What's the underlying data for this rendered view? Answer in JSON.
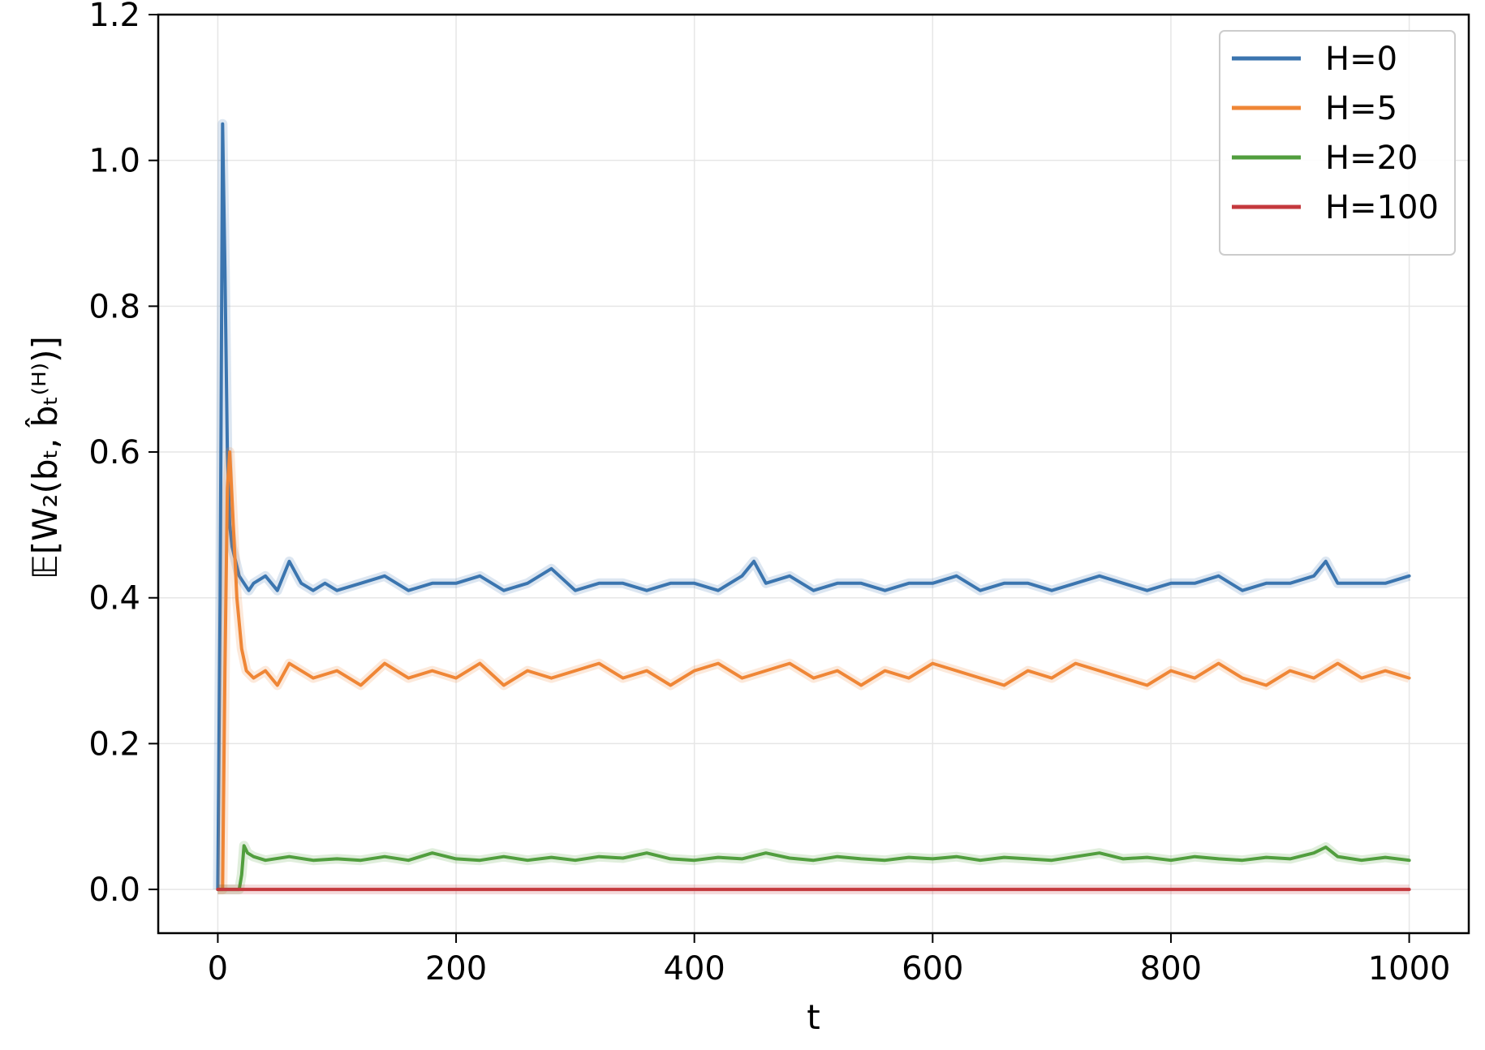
{
  "chart_data": {
    "type": "line",
    "xlabel": "t",
    "ylabel": "𝔼[W₂(bₜ, b̂ₜ⁽ᴴ⁾)]",
    "xlim": [
      -50,
      1050
    ],
    "ylim": [
      -0.06,
      1.2
    ],
    "xticks": [
      0,
      200,
      400,
      600,
      800,
      1000
    ],
    "yticks": [
      0.0,
      0.2,
      0.4,
      0.6,
      0.8,
      1.0,
      1.2
    ],
    "xtick_labels": [
      "0",
      "200",
      "400",
      "600",
      "800",
      "1000"
    ],
    "ytick_labels": [
      "0.0",
      "0.2",
      "0.4",
      "0.6",
      "0.8",
      "1.0",
      "1.2"
    ],
    "grid": true,
    "legend_position": "top-right",
    "series": [
      {
        "name": "H=0",
        "color": "#3b75af",
        "x": [
          0,
          2,
          4,
          6,
          8,
          10,
          12,
          15,
          18,
          22,
          26,
          30,
          40,
          50,
          60,
          70,
          80,
          90,
          100,
          120,
          140,
          160,
          180,
          200,
          220,
          240,
          260,
          280,
          300,
          320,
          340,
          360,
          380,
          400,
          420,
          440,
          450,
          460,
          480,
          500,
          520,
          540,
          560,
          580,
          600,
          620,
          640,
          660,
          680,
          700,
          720,
          740,
          760,
          780,
          800,
          820,
          840,
          860,
          880,
          900,
          920,
          930,
          940,
          960,
          980,
          1000
        ],
        "y": [
          0.0,
          0.4,
          1.05,
          0.85,
          0.6,
          0.5,
          0.47,
          0.45,
          0.43,
          0.42,
          0.41,
          0.42,
          0.43,
          0.41,
          0.45,
          0.42,
          0.41,
          0.42,
          0.41,
          0.42,
          0.43,
          0.41,
          0.42,
          0.42,
          0.43,
          0.41,
          0.42,
          0.44,
          0.41,
          0.42,
          0.42,
          0.41,
          0.42,
          0.42,
          0.41,
          0.43,
          0.45,
          0.42,
          0.43,
          0.41,
          0.42,
          0.42,
          0.41,
          0.42,
          0.42,
          0.43,
          0.41,
          0.42,
          0.42,
          0.41,
          0.42,
          0.43,
          0.42,
          0.41,
          0.42,
          0.42,
          0.43,
          0.41,
          0.42,
          0.42,
          0.43,
          0.45,
          0.42,
          0.42,
          0.42,
          0.43
        ]
      },
      {
        "name": "H=5",
        "color": "#ef8636",
        "x": [
          0,
          4,
          6,
          8,
          10,
          13,
          16,
          20,
          24,
          30,
          40,
          50,
          60,
          80,
          100,
          120,
          140,
          160,
          180,
          200,
          220,
          240,
          260,
          280,
          300,
          320,
          340,
          360,
          380,
          400,
          420,
          440,
          460,
          480,
          500,
          520,
          540,
          560,
          580,
          600,
          620,
          640,
          660,
          680,
          700,
          720,
          740,
          760,
          780,
          800,
          820,
          840,
          860,
          880,
          900,
          920,
          940,
          960,
          980,
          1000
        ],
        "y": [
          0.0,
          0.0,
          0.3,
          0.55,
          0.6,
          0.5,
          0.4,
          0.33,
          0.3,
          0.29,
          0.3,
          0.28,
          0.31,
          0.29,
          0.3,
          0.28,
          0.31,
          0.29,
          0.3,
          0.29,
          0.31,
          0.28,
          0.3,
          0.29,
          0.3,
          0.31,
          0.29,
          0.3,
          0.28,
          0.3,
          0.31,
          0.29,
          0.3,
          0.31,
          0.29,
          0.3,
          0.28,
          0.3,
          0.29,
          0.31,
          0.3,
          0.29,
          0.28,
          0.3,
          0.29,
          0.31,
          0.3,
          0.29,
          0.28,
          0.3,
          0.29,
          0.31,
          0.29,
          0.28,
          0.3,
          0.29,
          0.31,
          0.29,
          0.3,
          0.29
        ]
      },
      {
        "name": "H=20",
        "color": "#519e3e",
        "x": [
          0,
          18,
          20,
          22,
          25,
          30,
          40,
          60,
          80,
          100,
          120,
          140,
          160,
          180,
          200,
          220,
          240,
          260,
          280,
          300,
          320,
          340,
          360,
          380,
          400,
          420,
          440,
          460,
          480,
          500,
          520,
          540,
          560,
          580,
          600,
          620,
          640,
          660,
          680,
          700,
          720,
          740,
          760,
          780,
          800,
          820,
          840,
          860,
          880,
          900,
          920,
          930,
          940,
          960,
          980,
          1000
        ],
        "y": [
          0.0,
          0.0,
          0.02,
          0.06,
          0.05,
          0.045,
          0.04,
          0.045,
          0.04,
          0.042,
          0.04,
          0.045,
          0.04,
          0.05,
          0.042,
          0.04,
          0.045,
          0.04,
          0.044,
          0.04,
          0.045,
          0.043,
          0.05,
          0.042,
          0.04,
          0.044,
          0.042,
          0.05,
          0.043,
          0.04,
          0.045,
          0.042,
          0.04,
          0.044,
          0.042,
          0.045,
          0.04,
          0.044,
          0.042,
          0.04,
          0.045,
          0.05,
          0.042,
          0.044,
          0.04,
          0.045,
          0.042,
          0.04,
          0.044,
          0.042,
          0.05,
          0.058,
          0.045,
          0.04,
          0.044,
          0.04
        ]
      },
      {
        "name": "H=100",
        "color": "#c4393d",
        "x": [
          0,
          1000
        ],
        "y": [
          0.0,
          0.0
        ]
      }
    ]
  }
}
